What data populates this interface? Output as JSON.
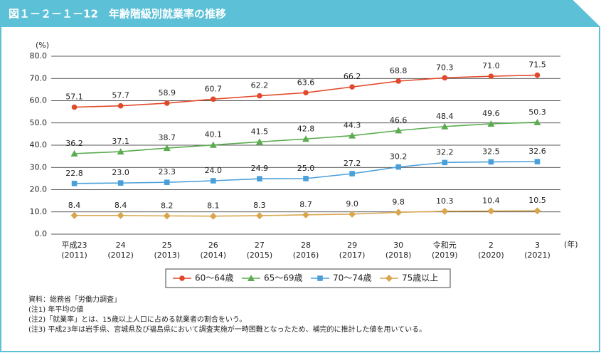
{
  "chart_data": {
    "type": "line",
    "title": "図１－２－１－12　年齢階級別就業率の推移",
    "y_unit": "(%)",
    "x_unit": "(年)",
    "categories": [
      "平成23",
      "24",
      "25",
      "26",
      "27",
      "28",
      "29",
      "30",
      "令和元",
      "2",
      "3"
    ],
    "category_years": [
      "(2011)",
      "(2012)",
      "(2013)",
      "(2014)",
      "(2015)",
      "(2016)",
      "(2017)",
      "(2018)",
      "(2019)",
      "(2020)",
      "(2021)"
    ],
    "series": [
      {
        "name": "60～64歳",
        "color": "#e2492a",
        "marker": "circle",
        "values": [
          57.1,
          57.7,
          58.9,
          60.7,
          62.2,
          63.6,
          66.2,
          68.8,
          70.3,
          71.0,
          71.5
        ],
        "value_labels": [
          "57.1",
          "57.7",
          "58.9",
          "60.7",
          "62.2",
          "63.6",
          "66.2",
          "68.8",
          "70.3",
          "71.0",
          "71.5"
        ]
      },
      {
        "name": "65～69歳",
        "color": "#5aac4f",
        "marker": "triangle",
        "values": [
          36.2,
          37.1,
          38.7,
          40.1,
          41.5,
          42.8,
          44.3,
          46.6,
          48.4,
          49.6,
          50.3
        ],
        "value_labels": [
          "36.2",
          "37.1",
          "38.7",
          "40.1",
          "41.5",
          "42.8",
          "44.3",
          "46.6",
          "48.4",
          "49.6",
          "50.3"
        ]
      },
      {
        "name": "70～74歳",
        "color": "#4a9fd9",
        "marker": "square",
        "values": [
          22.8,
          23.0,
          23.3,
          24.0,
          24.9,
          25.0,
          27.2,
          30.2,
          32.2,
          32.5,
          32.6
        ],
        "value_labels": [
          "22.8",
          "23.0",
          "23.3",
          "24.0",
          "24.9",
          "25.0",
          "27.2",
          "30.2",
          "32.2",
          "32.5",
          "32.6"
        ]
      },
      {
        "name": "75歳以上",
        "color": "#d9a64e",
        "marker": "diamond",
        "values": [
          8.4,
          8.4,
          8.2,
          8.1,
          8.3,
          8.7,
          9.0,
          9.8,
          10.3,
          10.4,
          10.5
        ],
        "value_labels": [
          "8.4",
          "8.4",
          "8.2",
          "8.1",
          "8.3",
          "8.7",
          "9.0",
          "9.8",
          "10.3",
          "10.4",
          "10.5"
        ]
      }
    ],
    "ylim": [
      0,
      80
    ],
    "yticks": [
      {
        "value": 0,
        "label": "0.0"
      },
      {
        "value": 10,
        "label": "10.0"
      },
      {
        "value": 20,
        "label": "20.0"
      },
      {
        "value": 30,
        "label": "30.0"
      },
      {
        "value": 40,
        "label": "40.0"
      },
      {
        "value": 50,
        "label": "50.0"
      },
      {
        "value": 60,
        "label": "60.0"
      },
      {
        "value": 70,
        "label": "70.0"
      },
      {
        "value": 80,
        "label": "80.0"
      }
    ],
    "grid": true,
    "legend": "bottom",
    "notes": [
      "資料：総務省「労働力調査」",
      "(注1) 年平均の値",
      "(注2)「就業率」とは、15歳以上人口に占める就業者の割合をいう。",
      "(注3) 平成23年は岩手県、宮城県及び福島県において調査実施が一時困難となったため、補完的に推計した値を用いている。"
    ]
  }
}
